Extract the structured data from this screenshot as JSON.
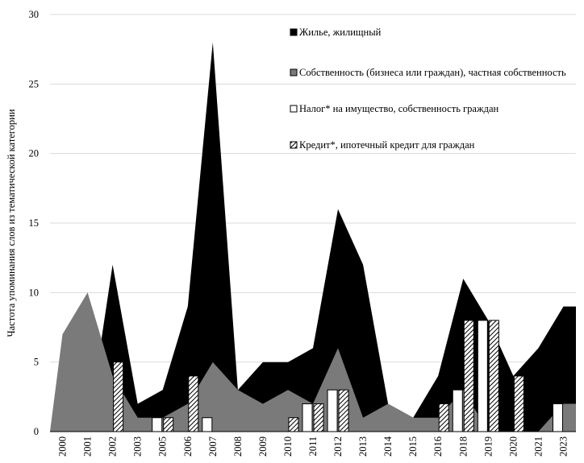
{
  "chart_data": {
    "type": "area",
    "ylabel": "Частота упоминания слов из тематической категории",
    "xlabel": "",
    "ylim": [
      0,
      30
    ],
    "yticks": [
      0,
      5,
      10,
      15,
      20,
      25,
      30
    ],
    "legend_position": "top-right",
    "categories": [
      "2000",
      "2001",
      "2002",
      "2003",
      "2005",
      "2006",
      "2007",
      "2008",
      "2009",
      "2010",
      "2011",
      "2012",
      "2013",
      "2014",
      "2015",
      "2016",
      "2018",
      "2019",
      "2020",
      "2021",
      "2023"
    ],
    "areas": [
      {
        "name": "Жилье, жилищный",
        "color": "#000000",
        "values": [
          0,
          0,
          12,
          2,
          3,
          9,
          28,
          3,
          5,
          5,
          6,
          16,
          12,
          2,
          1,
          4,
          11,
          8,
          4,
          6,
          9
        ]
      },
      {
        "name": "Собственность (бизнеса или граждан), частная собственность",
        "color": "#7a7a7a",
        "values": [
          7,
          10,
          4,
          1,
          1,
          2,
          5,
          3,
          2,
          3,
          2,
          6,
          1,
          2,
          1,
          1,
          3,
          0,
          0,
          0,
          2
        ]
      }
    ],
    "bars": [
      {
        "name": "Налог* на имущество, собственность граждан",
        "color": "#ffffff",
        "pattern": "none",
        "values": [
          0,
          0,
          0,
          0,
          1,
          0,
          1,
          0,
          0,
          0,
          2,
          3,
          0,
          0,
          0,
          0,
          3,
          8,
          0,
          0,
          2
        ]
      },
      {
        "name": "Кредит*, ипотечный кредит для граждан",
        "color": "#ffffff",
        "pattern": "hatch",
        "values": [
          0,
          0,
          5,
          0,
          1,
          4,
          0,
          0,
          0,
          1,
          2,
          3,
          0,
          0,
          0,
          2,
          8,
          8,
          4,
          0,
          0
        ]
      }
    ]
  }
}
